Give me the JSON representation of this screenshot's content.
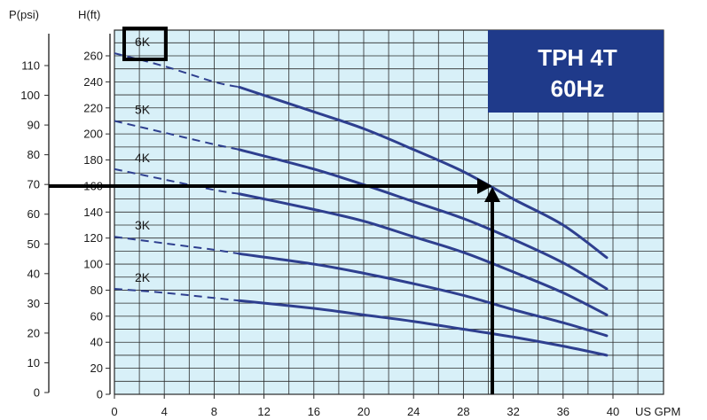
{
  "chart_data": {
    "type": "line",
    "title": "TPH 4T\n60Hz",
    "title_lines": [
      "TPH 4T",
      "60Hz"
    ],
    "xlabel": "US GPM",
    "ylabel_left_outer": "P(psi)",
    "ylabel_left_inner": "H(ft)",
    "xlim": [
      0,
      40
    ],
    "ylim_ft": [
      0,
      280
    ],
    "ylim_psi": [
      0,
      120
    ],
    "x_ticks": [
      0,
      4,
      8,
      12,
      16,
      20,
      24,
      28,
      32,
      36,
      40
    ],
    "y_ticks_ft": [
      0,
      20,
      40,
      60,
      80,
      100,
      120,
      140,
      160,
      180,
      200,
      220,
      240,
      260
    ],
    "y_ticks_psi": [
      0,
      10,
      20,
      30,
      40,
      50,
      60,
      70,
      80,
      90,
      100,
      110
    ],
    "grid": true,
    "series": [
      {
        "name": "6K",
        "dashed_to_x": 10,
        "x": [
          0,
          4,
          8,
          10,
          16,
          20,
          24,
          28,
          32,
          36,
          39.5
        ],
        "y": [
          262,
          252,
          240,
          236,
          217,
          204,
          188,
          171,
          150,
          130,
          105
        ]
      },
      {
        "name": "5K",
        "dashed_to_x": 10,
        "x": [
          0,
          4,
          8,
          10,
          16,
          20,
          24,
          28,
          32,
          36,
          39.5
        ],
        "y": [
          210,
          201,
          192,
          188,
          173,
          161,
          148,
          135,
          119,
          101,
          81
        ]
      },
      {
        "name": "4K",
        "dashed_to_x": 10,
        "x": [
          0,
          4,
          8,
          10,
          16,
          20,
          24,
          28,
          32,
          36,
          39.5
        ],
        "y": [
          173,
          165,
          157,
          154,
          142,
          133,
          121,
          109,
          94,
          78,
          61
        ]
      },
      {
        "name": "3K",
        "dashed_to_x": 10,
        "x": [
          0,
          4,
          8,
          10,
          16,
          20,
          24,
          28,
          32,
          36,
          39.5
        ],
        "y": [
          121,
          116,
          111,
          108,
          100,
          93,
          85,
          76,
          65,
          55,
          45
        ]
      },
      {
        "name": "2K",
        "dashed_to_x": 10,
        "x": [
          0,
          4,
          8,
          10,
          16,
          20,
          24,
          28,
          32,
          36,
          39.5
        ],
        "y": [
          81,
          78,
          74,
          72,
          66,
          61,
          56,
          50,
          44,
          37,
          30
        ]
      }
    ],
    "highlighted_series": "6K",
    "operating_point": {
      "x": 30,
      "y_psi": 70
    },
    "colors": {
      "plot_background": "#d8f0f8",
      "grid": "#2a2a2a",
      "curve": "#2e3f8f",
      "badge_background": "#1f3a8a",
      "badge_text": "#ffffff",
      "arrow": "#000000"
    }
  }
}
